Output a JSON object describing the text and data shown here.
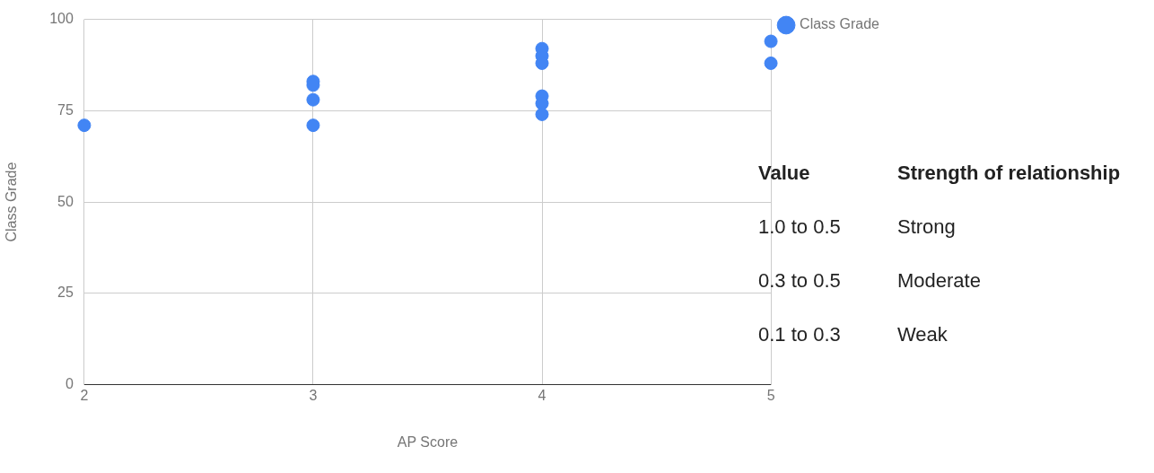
{
  "chart_data": {
    "type": "scatter",
    "xlabel": "AP Score",
    "ylabel": "Class Grade",
    "series": [
      {
        "name": "Class Grade",
        "color": "#4285f4",
        "x": [
          2,
          3,
          3,
          3,
          3,
          4,
          4,
          4,
          4,
          4,
          4,
          5,
          5
        ],
        "values": [
          71,
          83,
          82,
          78,
          71,
          92,
          90,
          88,
          79,
          77,
          74,
          94,
          88
        ]
      }
    ],
    "xlim": [
      2,
      5
    ],
    "xticks": [
      2,
      3,
      4,
      5
    ],
    "ylim": [
      0,
      100
    ],
    "yticks": [
      0,
      25,
      50,
      75,
      100
    ],
    "grid": true,
    "legend": "top right",
    "marker": "circle",
    "annotations": [
      "Value",
      "Strength of relationship",
      "1.0 to 0.5",
      "Strong",
      "0.3 to 0.5",
      "Moderate",
      "0.1 to 0.3",
      "Weak"
    ]
  }
}
